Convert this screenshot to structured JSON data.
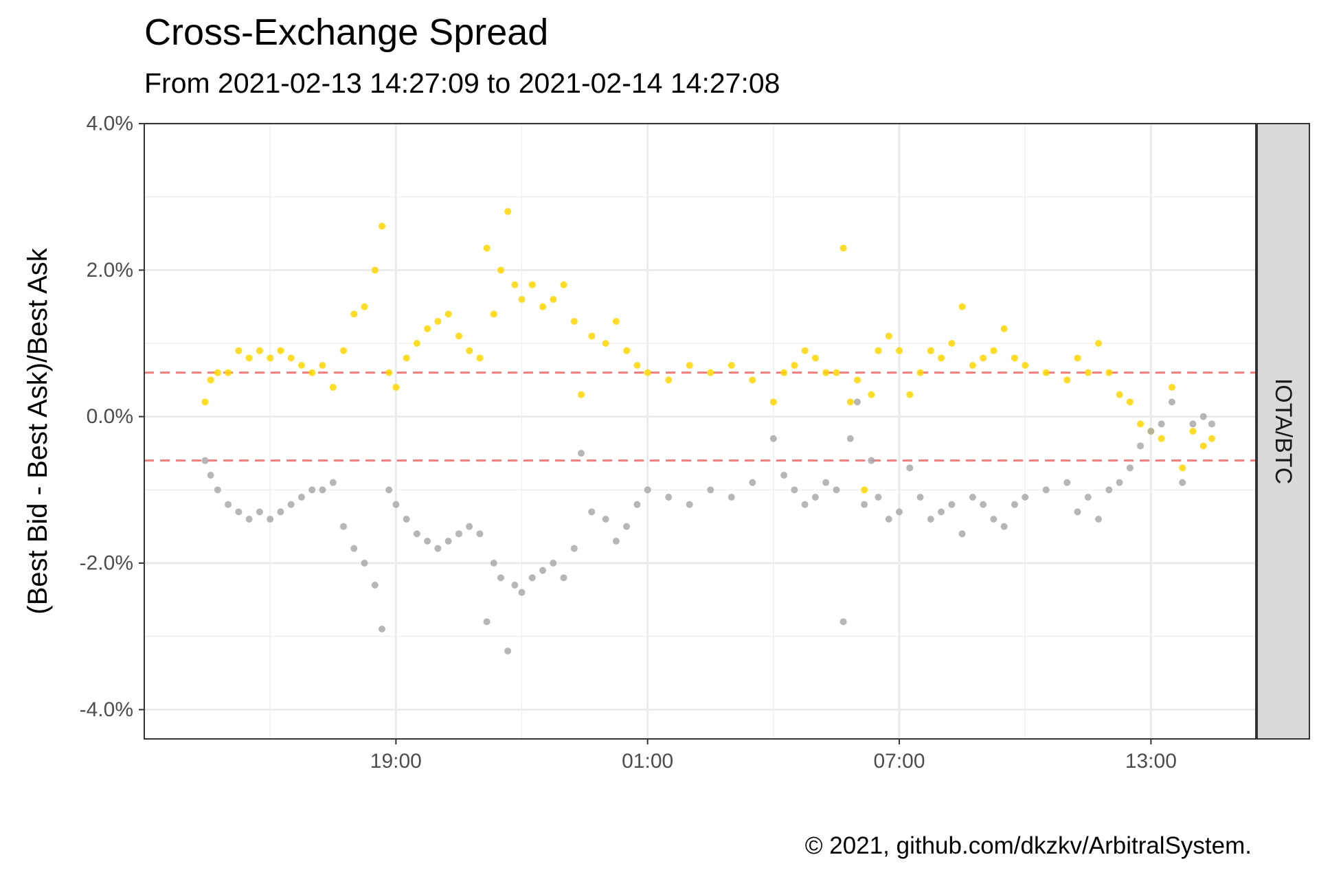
{
  "chart_data": {
    "type": "scatter",
    "title": "Cross-Exchange Spread",
    "subtitle": "From 2021-02-13 14:27:09 to 2021-02-14 14:27:08",
    "ylabel": "(Best Bid - Best Ask)/Best Ask",
    "xlabel": "",
    "facet_label": "IOTA/BTC",
    "caption": "© 2021, github.com/dkzkv/ArbitralSystem.",
    "ylim": [
      -4.4,
      4.0
    ],
    "y_ticks": [
      4.0,
      2.0,
      0.0,
      -2.0,
      -4.0
    ],
    "y_tick_labels": [
      "4.0%",
      "2.0%",
      "0.0%",
      "-2.0%",
      "-4.0%"
    ],
    "x_range": [
      "2021-02-13 13:00",
      "2021-02-14 15:30"
    ],
    "x_ticks": [
      "2021-02-13 19:00",
      "2021-02-14 01:00",
      "2021-02-14 07:00",
      "2021-02-14 13:00"
    ],
    "x_tick_labels": [
      "19:00",
      "01:00",
      "07:00",
      "13:00"
    ],
    "threshold_lines": [
      0.6,
      -0.6
    ],
    "threshold_color": "#f27c7c",
    "grid": true,
    "series": [
      {
        "color": "#ffd700",
        "points": [
          [
            "14:27",
            0.2
          ],
          [
            "14:35",
            0.5
          ],
          [
            "14:45",
            0.6
          ],
          [
            "15:00",
            0.6
          ],
          [
            "15:15",
            0.9
          ],
          [
            "15:30",
            0.8
          ],
          [
            "15:45",
            0.9
          ],
          [
            "16:00",
            0.8
          ],
          [
            "16:15",
            0.9
          ],
          [
            "16:30",
            0.8
          ],
          [
            "16:45",
            0.7
          ],
          [
            "17:00",
            0.6
          ],
          [
            "17:15",
            0.7
          ],
          [
            "17:30",
            0.4
          ],
          [
            "17:45",
            0.9
          ],
          [
            "18:00",
            1.4
          ],
          [
            "18:15",
            1.5
          ],
          [
            "18:30",
            2.0
          ],
          [
            "18:40",
            2.6
          ],
          [
            "18:50",
            0.6
          ],
          [
            "19:00",
            0.4
          ],
          [
            "19:15",
            0.8
          ],
          [
            "19:30",
            1.0
          ],
          [
            "19:45",
            1.2
          ],
          [
            "20:00",
            1.3
          ],
          [
            "20:15",
            1.4
          ],
          [
            "20:30",
            1.1
          ],
          [
            "20:45",
            0.9
          ],
          [
            "21:00",
            0.8
          ],
          [
            "21:10",
            2.3
          ],
          [
            "21:20",
            1.4
          ],
          [
            "21:30",
            2.0
          ],
          [
            "21:40",
            2.8
          ],
          [
            "21:50",
            1.8
          ],
          [
            "22:00",
            1.6
          ],
          [
            "22:15",
            1.8
          ],
          [
            "22:30",
            1.5
          ],
          [
            "22:45",
            1.6
          ],
          [
            "23:00",
            1.8
          ],
          [
            "23:15",
            1.3
          ],
          [
            "23:25",
            0.3
          ],
          [
            "23:40",
            1.1
          ],
          [
            "00:00",
            1.0
          ],
          [
            "00:15",
            1.3
          ],
          [
            "00:30",
            0.9
          ],
          [
            "00:45",
            0.7
          ],
          [
            "01:00",
            0.6
          ],
          [
            "01:30",
            0.5
          ],
          [
            "02:00",
            0.7
          ],
          [
            "02:30",
            0.6
          ],
          [
            "03:00",
            0.7
          ],
          [
            "03:30",
            0.5
          ],
          [
            "04:00",
            0.2
          ],
          [
            "04:15",
            0.6
          ],
          [
            "04:30",
            0.7
          ],
          [
            "04:45",
            0.9
          ],
          [
            "05:00",
            0.8
          ],
          [
            "05:15",
            0.6
          ],
          [
            "05:30",
            0.6
          ],
          [
            "05:40",
            2.3
          ],
          [
            "05:50",
            0.2
          ],
          [
            "06:00",
            0.5
          ],
          [
            "06:10",
            -1.0
          ],
          [
            "06:20",
            0.3
          ],
          [
            "06:30",
            0.9
          ],
          [
            "06:45",
            1.1
          ],
          [
            "07:00",
            0.9
          ],
          [
            "07:15",
            0.3
          ],
          [
            "07:30",
            0.6
          ],
          [
            "07:45",
            0.9
          ],
          [
            "08:00",
            0.8
          ],
          [
            "08:15",
            1.0
          ],
          [
            "08:30",
            1.5
          ],
          [
            "08:45",
            0.7
          ],
          [
            "09:00",
            0.8
          ],
          [
            "09:15",
            0.9
          ],
          [
            "09:30",
            1.2
          ],
          [
            "09:45",
            0.8
          ],
          [
            "10:00",
            0.7
          ],
          [
            "10:30",
            0.6
          ],
          [
            "11:00",
            0.5
          ],
          [
            "11:15",
            0.8
          ],
          [
            "11:30",
            0.6
          ],
          [
            "11:45",
            1.0
          ],
          [
            "12:00",
            0.6
          ],
          [
            "12:15",
            0.3
          ],
          [
            "12:30",
            0.2
          ],
          [
            "12:45",
            -0.1
          ],
          [
            "13:00",
            -0.2
          ],
          [
            "13:15",
            -0.3
          ],
          [
            "13:30",
            0.4
          ],
          [
            "13:45",
            -0.7
          ],
          [
            "14:00",
            -0.2
          ],
          [
            "14:15",
            -0.4
          ],
          [
            "14:27",
            -0.3
          ]
        ]
      },
      {
        "color": "#a9a9a9",
        "points": [
          [
            "14:27",
            -0.6
          ],
          [
            "14:35",
            -0.8
          ],
          [
            "14:45",
            -1.0
          ],
          [
            "15:00",
            -1.2
          ],
          [
            "15:15",
            -1.3
          ],
          [
            "15:30",
            -1.4
          ],
          [
            "15:45",
            -1.3
          ],
          [
            "16:00",
            -1.4
          ],
          [
            "16:15",
            -1.3
          ],
          [
            "16:30",
            -1.2
          ],
          [
            "16:45",
            -1.1
          ],
          [
            "17:00",
            -1.0
          ],
          [
            "17:15",
            -1.0
          ],
          [
            "17:30",
            -0.9
          ],
          [
            "17:45",
            -1.5
          ],
          [
            "18:00",
            -1.8
          ],
          [
            "18:15",
            -2.0
          ],
          [
            "18:30",
            -2.3
          ],
          [
            "18:40",
            -2.9
          ],
          [
            "18:50",
            -1.0
          ],
          [
            "19:00",
            -1.2
          ],
          [
            "19:15",
            -1.4
          ],
          [
            "19:30",
            -1.6
          ],
          [
            "19:45",
            -1.7
          ],
          [
            "20:00",
            -1.8
          ],
          [
            "20:15",
            -1.7
          ],
          [
            "20:30",
            -1.6
          ],
          [
            "20:45",
            -1.5
          ],
          [
            "21:00",
            -1.6
          ],
          [
            "21:10",
            -2.8
          ],
          [
            "21:20",
            -2.0
          ],
          [
            "21:30",
            -2.2
          ],
          [
            "21:40",
            -3.2
          ],
          [
            "21:50",
            -2.3
          ],
          [
            "22:00",
            -2.4
          ],
          [
            "22:15",
            -2.2
          ],
          [
            "22:30",
            -2.1
          ],
          [
            "22:45",
            -2.0
          ],
          [
            "23:00",
            -2.2
          ],
          [
            "23:15",
            -1.8
          ],
          [
            "23:25",
            -0.5
          ],
          [
            "23:40",
            -1.3
          ],
          [
            "00:00",
            -1.4
          ],
          [
            "00:15",
            -1.7
          ],
          [
            "00:30",
            -1.5
          ],
          [
            "00:45",
            -1.2
          ],
          [
            "01:00",
            -1.0
          ],
          [
            "01:30",
            -1.1
          ],
          [
            "02:00",
            -1.2
          ],
          [
            "02:30",
            -1.0
          ],
          [
            "03:00",
            -1.1
          ],
          [
            "03:30",
            -0.9
          ],
          [
            "04:00",
            -0.3
          ],
          [
            "04:15",
            -0.8
          ],
          [
            "04:30",
            -1.0
          ],
          [
            "04:45",
            -1.2
          ],
          [
            "05:00",
            -1.1
          ],
          [
            "05:15",
            -0.9
          ],
          [
            "05:30",
            -1.0
          ],
          [
            "05:40",
            -2.8
          ],
          [
            "05:50",
            -0.3
          ],
          [
            "06:00",
            0.2
          ],
          [
            "06:10",
            -1.2
          ],
          [
            "06:20",
            -0.6
          ],
          [
            "06:30",
            -1.1
          ],
          [
            "06:45",
            -1.4
          ],
          [
            "07:00",
            -1.3
          ],
          [
            "07:15",
            -0.7
          ],
          [
            "07:30",
            -1.1
          ],
          [
            "07:45",
            -1.4
          ],
          [
            "08:00",
            -1.3
          ],
          [
            "08:15",
            -1.2
          ],
          [
            "08:30",
            -1.6
          ],
          [
            "08:45",
            -1.1
          ],
          [
            "09:00",
            -1.2
          ],
          [
            "09:15",
            -1.4
          ],
          [
            "09:30",
            -1.5
          ],
          [
            "09:45",
            -1.2
          ],
          [
            "10:00",
            -1.1
          ],
          [
            "10:30",
            -1.0
          ],
          [
            "11:00",
            -0.9
          ],
          [
            "11:15",
            -1.3
          ],
          [
            "11:30",
            -1.1
          ],
          [
            "11:45",
            -1.4
          ],
          [
            "12:00",
            -1.0
          ],
          [
            "12:15",
            -0.9
          ],
          [
            "12:30",
            -0.7
          ],
          [
            "12:45",
            -0.4
          ],
          [
            "13:00",
            -0.2
          ],
          [
            "13:15",
            -0.1
          ],
          [
            "13:30",
            0.2
          ],
          [
            "13:45",
            -0.9
          ],
          [
            "14:00",
            -0.1
          ],
          [
            "14:15",
            0.0
          ],
          [
            "14:27",
            -0.1
          ]
        ]
      }
    ]
  }
}
